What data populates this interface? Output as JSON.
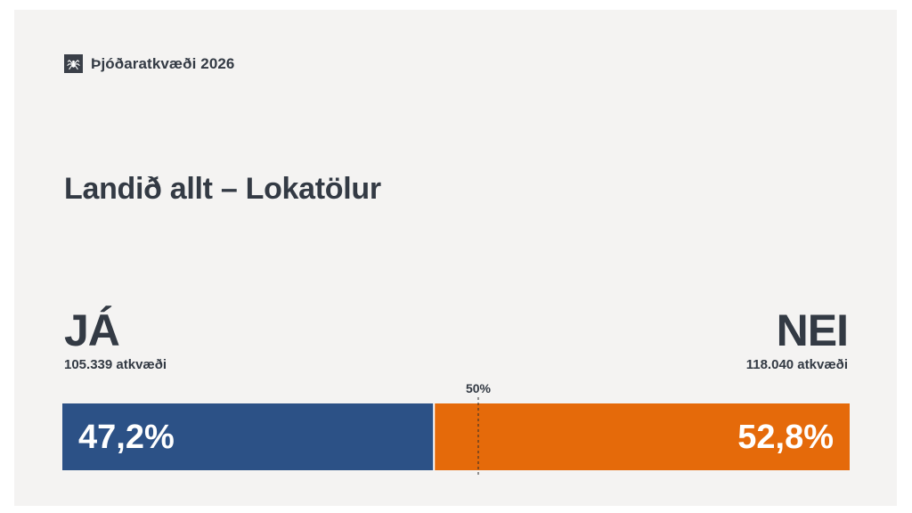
{
  "header": {
    "brand_text": "Þjóðaratkvæði 2026",
    "logo_icon": "spider-icon"
  },
  "title": "Landið allt – Lokatölur",
  "chart_data": {
    "type": "bar",
    "orientation": "horizontal-stacked",
    "categories": [
      "JÁ",
      "NEI"
    ],
    "values": [
      47.2,
      52.8
    ],
    "value_labels": [
      "47,2%",
      "52,8%"
    ],
    "votes": [
      105339,
      118040
    ],
    "vote_labels": [
      "105.339 atkvæði",
      "118.040 atkvæði"
    ],
    "colors": [
      "#2c5186",
      "#e56a0a"
    ],
    "reference_line": {
      "value": 50,
      "label": "50%"
    },
    "xlim": [
      0,
      100
    ]
  }
}
